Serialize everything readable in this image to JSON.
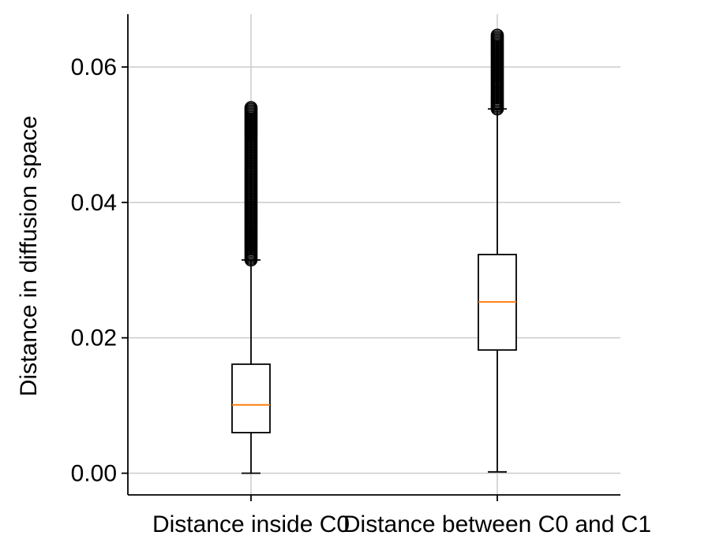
{
  "chart_data": {
    "type": "boxplot",
    "title": "",
    "xlabel": "",
    "ylabel": "Distance in diffusion space",
    "ylim": [
      -0.0032,
      0.0678
    ],
    "yticks": [
      "0.00",
      "0.02",
      "0.04",
      "0.06"
    ],
    "grid": true,
    "categories": [
      "Distance inside C0",
      "Distance between C0 and C1"
    ],
    "boxes": [
      {
        "label": "Distance inside C0",
        "whisker_low": 0.0,
        "q1": 0.006,
        "median": 0.0101,
        "q3": 0.0161,
        "whisker_high": 0.0315,
        "outliers_range": [
          0.0315,
          0.054
        ],
        "outliers_max": 0.054
      },
      {
        "label": "Distance between C0 and C1",
        "whisker_low": 0.0002,
        "q1": 0.0182,
        "median": 0.0253,
        "q3": 0.0323,
        "whisker_high": 0.0538,
        "outliers_range": [
          0.0538,
          0.0647
        ],
        "outliers_max": 0.0647
      }
    ],
    "colors": {
      "box": "#000000",
      "median": "#ff7f0e",
      "grid": "#cccccc"
    }
  }
}
